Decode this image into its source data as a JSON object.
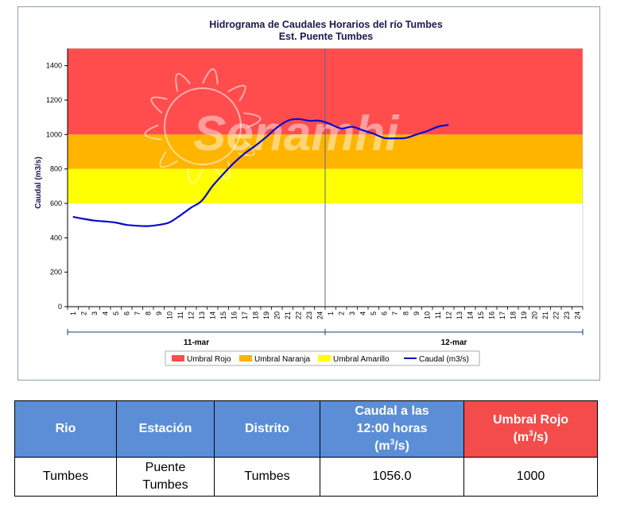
{
  "chart_data": {
    "type": "line",
    "title": "Hidrograma de Caudales Horarios del río Tumbes",
    "subtitle": "Est. Puente Tumbes",
    "ylabel": "Caudal  (m3/s)",
    "ylim": [
      0,
      1500
    ],
    "yticks": [
      "0",
      "200",
      "400",
      "600",
      "800",
      "1000",
      "1200",
      "1400"
    ],
    "day_labels": [
      "11-mar",
      "12-mar"
    ],
    "x_ticks": [
      "1",
      "2",
      "3",
      "4",
      "5",
      "6",
      "7",
      "8",
      "9",
      "10",
      "11",
      "12",
      "13",
      "14",
      "15",
      "16",
      "17",
      "18",
      "19",
      "20",
      "21",
      "22",
      "23",
      "24",
      "1",
      "2",
      "3",
      "4",
      "5",
      "6",
      "7",
      "8",
      "9",
      "10",
      "11",
      "12",
      "13",
      "14",
      "15",
      "16",
      "17",
      "18",
      "19",
      "20",
      "21",
      "22",
      "23",
      "24"
    ],
    "thresholds": [
      {
        "name": "Umbral Rojo",
        "from": 1000,
        "to": 1500,
        "color": "#ff4d4d"
      },
      {
        "name": "Umbral Naranja",
        "from": 800,
        "to": 1000,
        "color": "#ffb400"
      },
      {
        "name": "Umbral Amarillo",
        "from": 600,
        "to": 800,
        "color": "#ffff00"
      }
    ],
    "series": [
      {
        "name": "Caudal (m3/s)",
        "color": "#0a0acc",
        "x": [
          1,
          2,
          3,
          4,
          5,
          6,
          7,
          8,
          9,
          10,
          11,
          12,
          13,
          14,
          15,
          16,
          17,
          18,
          19,
          20,
          21,
          22,
          23,
          24,
          25,
          26,
          27,
          28,
          29,
          30,
          31,
          32,
          33,
          34,
          35,
          36
        ],
        "values": [
          522,
          510,
          500,
          495,
          488,
          475,
          470,
          468,
          475,
          490,
          530,
          575,
          615,
          700,
          770,
          835,
          890,
          935,
          985,
          1040,
          1080,
          1090,
          1080,
          1080,
          1060,
          1035,
          1045,
          1025,
          1005,
          980,
          978,
          980,
          1000,
          1020,
          1045,
          1056
        ]
      }
    ],
    "legend": [
      "Umbral Rojo",
      "Umbral Naranja",
      "Umbral Amarillo",
      "Caudal (m3/s)"
    ],
    "legend_position": "bottom",
    "watermark": "Senamhi"
  },
  "table": {
    "headers": {
      "rio": "Rio",
      "estacion": "Estación",
      "distrito": "Distrito",
      "caudal_line1": "Caudal a las",
      "caudal_line2": "12:00 horas",
      "caudal_unit_a": "(m",
      "caudal_unit_sup": "3",
      "caudal_unit_b": "/s)",
      "umbral_line1": "Umbral Rojo",
      "umbral_unit_a": "(m",
      "umbral_unit_sup": "3",
      "umbral_unit_b": "/s)"
    },
    "row": {
      "rio": "Tumbes",
      "estacion_line1": "Puente",
      "estacion_line2": "Tumbes",
      "distrito": "Tumbes",
      "caudal": "1056.0",
      "umbral": "1000"
    },
    "colors": {
      "header": "#5b8ed6",
      "header_red": "#f44b4b"
    }
  }
}
